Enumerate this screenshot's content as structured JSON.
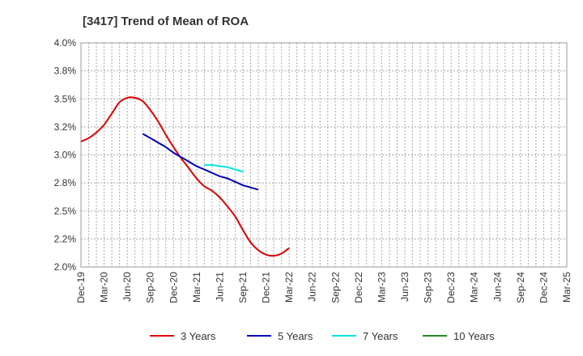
{
  "chart_data": {
    "type": "line",
    "title": "[3417]  Trend of Mean of ROA",
    "xlabel": "",
    "ylabel": "",
    "ylim": [
      2.0,
      4.0
    ],
    "y_ticks": [
      "4.0%",
      "3.8%",
      "3.5%",
      "3.2%",
      "3.0%",
      "2.8%",
      "2.5%",
      "2.2%",
      "2.0%"
    ],
    "y_tick_values": [
      4.0,
      3.75,
      3.5,
      3.25,
      3.0,
      2.75,
      2.5,
      2.25,
      2.0
    ],
    "x_ticks": [
      "Dec-19",
      "Mar-20",
      "Jun-20",
      "Sep-20",
      "Dec-20",
      "Mar-21",
      "Jun-21",
      "Sep-21",
      "Dec-21",
      "Mar-22",
      "Jun-22",
      "Sep-22",
      "Dec-22",
      "Mar-23",
      "Jun-23",
      "Sep-23",
      "Dec-23",
      "Mar-24",
      "Jun-24",
      "Sep-24",
      "Dec-24",
      "Mar-25"
    ],
    "grid": true,
    "legend_position": "bottom",
    "series": [
      {
        "name": "3 Years",
        "color": "#dd0000",
        "start_index": 0,
        "values": [
          3.12,
          3.15,
          3.2,
          3.27,
          3.37,
          3.47,
          3.51,
          3.51,
          3.48,
          3.4,
          3.3,
          3.18,
          3.07,
          2.97,
          2.88,
          2.79,
          2.72,
          2.68,
          2.62,
          2.54,
          2.45,
          2.33,
          2.22,
          2.15,
          2.11,
          2.1,
          2.12,
          2.17
        ]
      },
      {
        "name": "5 Years",
        "color": "#0000bb",
        "start_index": 8,
        "values": [
          3.19,
          3.15,
          3.11,
          3.07,
          3.02,
          2.98,
          2.94,
          2.9,
          2.87,
          2.84,
          2.81,
          2.79,
          2.76,
          2.73,
          2.71,
          2.69
        ]
      },
      {
        "name": "7 Years",
        "color": "#00e5e5",
        "start_index": 16,
        "values": [
          2.91,
          2.91,
          2.9,
          2.89,
          2.87,
          2.85
        ]
      },
      {
        "name": "10 Years",
        "color": "#228b22",
        "start_index": 0,
        "values": []
      }
    ]
  }
}
